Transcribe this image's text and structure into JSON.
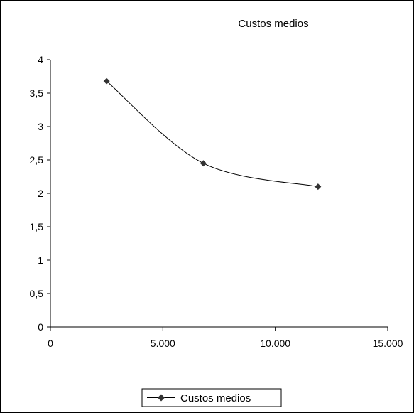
{
  "chart_data": {
    "type": "line",
    "title": "Custos medios",
    "xlabel": "",
    "ylabel": "",
    "xlim": [
      0,
      15000
    ],
    "ylim": [
      0,
      4
    ],
    "x_ticks": [
      "0",
      "5.000",
      "10.000",
      "15.000"
    ],
    "y_ticks": [
      "0",
      "0,5",
      "1",
      "1,5",
      "2",
      "2,5",
      "3",
      "3,5",
      "4"
    ],
    "grid": false,
    "legend_position": "bottom",
    "smooth": true,
    "series": [
      {
        "name": "Custos medios",
        "color": "#000000",
        "marker": "diamond",
        "points": [
          {
            "x": 2500,
            "y": 3.68
          },
          {
            "x": 6800,
            "y": 2.45
          },
          {
            "x": 11900,
            "y": 2.1
          }
        ]
      }
    ]
  }
}
